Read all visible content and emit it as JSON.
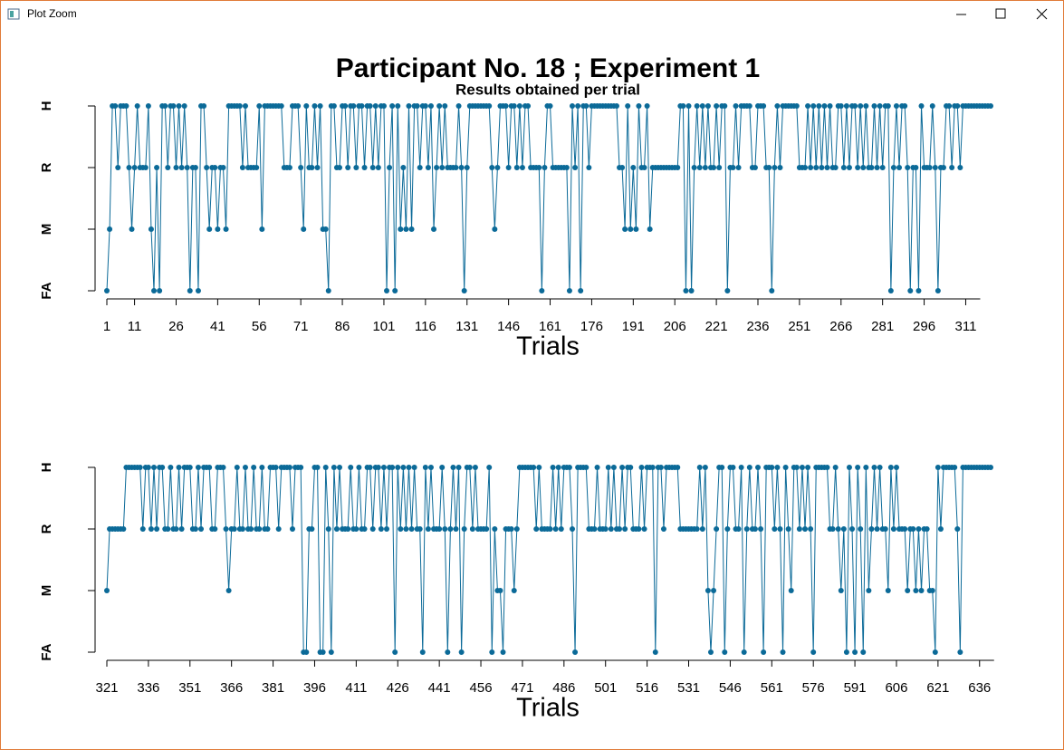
{
  "window_title": "Plot Zoom",
  "chart_data": [
    {
      "type": "line",
      "title": "Participant No. 18 ; Experiment 1",
      "subtitle": "Results obtained per trial",
      "x_label": "Trials",
      "color": "#0b6a98",
      "xlim": [
        1,
        320
      ],
      "ylim": [
        1,
        4
      ],
      "xticks": [
        1,
        11,
        26,
        41,
        56,
        71,
        86,
        101,
        116,
        131,
        146,
        161,
        176,
        191,
        206,
        221,
        236,
        251,
        266,
        281,
        296,
        311
      ],
      "yticks": [
        {
          "value": 1,
          "label": "FA"
        },
        {
          "value": 2,
          "label": "M"
        },
        {
          "value": 3,
          "label": "R"
        },
        {
          "value": 4,
          "label": "H"
        }
      ],
      "x": [
        1,
        2,
        3,
        4,
        5,
        6,
        7,
        8,
        9,
        10,
        11,
        12,
        13,
        14,
        15,
        16,
        17,
        18,
        19,
        20,
        21,
        22,
        23,
        24,
        25,
        26,
        27,
        28,
        29,
        30,
        31,
        32,
        33,
        34,
        35,
        36,
        37,
        38,
        39,
        40,
        41,
        42,
        43,
        44,
        45,
        46,
        47,
        48,
        49,
        50,
        51,
        52,
        53,
        54,
        55,
        56,
        57,
        58,
        59,
        60,
        61,
        62,
        63,
        64,
        65,
        66,
        67,
        68,
        69,
        70,
        71,
        72,
        73,
        74,
        75,
        76,
        77,
        78,
        79,
        80,
        81,
        82,
        83,
        84,
        85,
        86,
        87,
        88,
        89,
        90,
        91,
        92,
        93,
        94,
        95,
        96,
        97,
        98,
        99,
        100,
        101,
        102,
        103,
        104,
        105,
        106,
        107,
        108,
        109,
        110,
        111,
        112,
        113,
        114,
        115,
        116,
        117,
        118,
        119,
        120,
        121,
        122,
        123,
        124,
        125,
        126,
        127,
        128,
        129,
        130,
        131,
        132,
        133,
        134,
        135,
        136,
        137,
        138,
        139,
        140,
        141,
        142,
        143,
        144,
        145,
        146,
        147,
        148,
        149,
        150,
        151,
        152,
        153,
        154,
        155,
        156,
        157,
        158,
        159,
        160,
        161,
        162,
        163,
        164,
        165,
        166,
        167,
        168,
        169,
        170,
        171,
        172,
        173,
        174,
        175,
        176,
        177,
        178,
        179,
        180,
        181,
        182,
        183,
        184,
        185,
        186,
        187,
        188,
        189,
        190,
        191,
        192,
        193,
        194,
        195,
        196,
        197,
        198,
        199,
        200,
        201,
        202,
        203,
        204,
        205,
        206,
        207,
        208,
        209,
        210,
        211,
        212,
        213,
        214,
        215,
        216,
        217,
        218,
        219,
        220,
        221,
        222,
        223,
        224,
        225,
        226,
        227,
        228,
        229,
        230,
        231,
        232,
        233,
        234,
        235,
        236,
        237,
        238,
        239,
        240,
        241,
        242,
        243,
        244,
        245,
        246,
        247,
        248,
        249,
        250,
        251,
        252,
        253,
        254,
        255,
        256,
        257,
        258,
        259,
        260,
        261,
        262,
        263,
        264,
        265,
        266,
        267,
        268,
        269,
        270,
        271,
        272,
        273,
        274,
        275,
        276,
        277,
        278,
        279,
        280,
        281,
        282,
        283,
        284,
        285,
        286,
        287,
        288,
        289,
        290,
        291,
        292,
        293,
        294,
        295,
        296,
        297,
        298,
        299,
        300,
        301,
        302,
        303,
        304,
        305,
        306,
        307,
        308,
        309,
        310,
        311,
        312,
        313,
        314,
        315,
        316,
        317,
        318,
        319,
        320
      ],
      "values": [
        1,
        2,
        4,
        4,
        3,
        4,
        4,
        4,
        3,
        2,
        3,
        4,
        3,
        3,
        3,
        4,
        2,
        1,
        3,
        1,
        4,
        4,
        3,
        4,
        4,
        3,
        4,
        3,
        4,
        3,
        1,
        3,
        3,
        1,
        4,
        4,
        3,
        2,
        3,
        3,
        2,
        3,
        3,
        2,
        4,
        4,
        4,
        4,
        4,
        3,
        4,
        3,
        3,
        3,
        3,
        4,
        2,
        4,
        4,
        4,
        4,
        4,
        4,
        4,
        3,
        3,
        3,
        4,
        4,
        4,
        3,
        2,
        4,
        3,
        3,
        4,
        3,
        4,
        2,
        2,
        1,
        4,
        4,
        3,
        3,
        4,
        4,
        3,
        4,
        4,
        3,
        4,
        4,
        3,
        4,
        4,
        3,
        4,
        3,
        4,
        4,
        1,
        3,
        4,
        1,
        4,
        2,
        3,
        2,
        4,
        2,
        4,
        4,
        3,
        4,
        4,
        3,
        4,
        2,
        3,
        4,
        3,
        4,
        3,
        3,
        3,
        3,
        4,
        3,
        1,
        3,
        4,
        4,
        4,
        4,
        4,
        4,
        4,
        4,
        3,
        2,
        3,
        4,
        4,
        4,
        3,
        4,
        4,
        3,
        4,
        3,
        4,
        4,
        3,
        3,
        3,
        3,
        1,
        3,
        4,
        4,
        3,
        3,
        3,
        3,
        3,
        3,
        1,
        4,
        3,
        4,
        1,
        4,
        4,
        3,
        4,
        4,
        4,
        4,
        4,
        4,
        4,
        4,
        4,
        4,
        3,
        3,
        2,
        4,
        2,
        3,
        2,
        4,
        3,
        3,
        4,
        2,
        3,
        3,
        3,
        3,
        3,
        3,
        3,
        3,
        3,
        3,
        4,
        4,
        1,
        4,
        1,
        3,
        4,
        3,
        4,
        3,
        4,
        3,
        3,
        4,
        3,
        4,
        4,
        1,
        3,
        3,
        4,
        3,
        4,
        4,
        4,
        4,
        3,
        3,
        4,
        4,
        4,
        3,
        3,
        1,
        3,
        4,
        3,
        4,
        4,
        4,
        4,
        4,
        4,
        3,
        3,
        3,
        4,
        3,
        4,
        3,
        4,
        3,
        4,
        3,
        4,
        3,
        3,
        4,
        4,
        3,
        4,
        3,
        4,
        4,
        3,
        4,
        3,
        4,
        3,
        3,
        4,
        3,
        4,
        3,
        4,
        4,
        1,
        3,
        4,
        3,
        4,
        4,
        3,
        1,
        3,
        3,
        1,
        4,
        3,
        3,
        3,
        4,
        3,
        1,
        3,
        3,
        4,
        4,
        3,
        4,
        4,
        3,
        4,
        4,
        4,
        4,
        4,
        4,
        4,
        4,
        4,
        4,
        4
      ]
    },
    {
      "type": "line",
      "x_label": "Trials",
      "color": "#0b6a98",
      "xlim": [
        321,
        640
      ],
      "ylim": [
        1,
        4
      ],
      "xticks": [
        321,
        336,
        351,
        366,
        381,
        396,
        411,
        426,
        441,
        456,
        471,
        486,
        501,
        516,
        531,
        546,
        561,
        576,
        591,
        606,
        621,
        636
      ],
      "yticks": [
        {
          "value": 1,
          "label": "FA"
        },
        {
          "value": 2,
          "label": "M"
        },
        {
          "value": 3,
          "label": "R"
        },
        {
          "value": 4,
          "label": "H"
        }
      ],
      "x": [
        321,
        322,
        323,
        324,
        325,
        326,
        327,
        328,
        329,
        330,
        331,
        332,
        333,
        334,
        335,
        336,
        337,
        338,
        339,
        340,
        341,
        342,
        343,
        344,
        345,
        346,
        347,
        348,
        349,
        350,
        351,
        352,
        353,
        354,
        355,
        356,
        357,
        358,
        359,
        360,
        361,
        362,
        363,
        364,
        365,
        366,
        367,
        368,
        369,
        370,
        371,
        372,
        373,
        374,
        375,
        376,
        377,
        378,
        379,
        380,
        381,
        382,
        383,
        384,
        385,
        386,
        387,
        388,
        389,
        390,
        391,
        392,
        393,
        394,
        395,
        396,
        397,
        398,
        399,
        400,
        401,
        402,
        403,
        404,
        405,
        406,
        407,
        408,
        409,
        410,
        411,
        412,
        413,
        414,
        415,
        416,
        417,
        418,
        419,
        420,
        421,
        422,
        423,
        424,
        425,
        426,
        427,
        428,
        429,
        430,
        431,
        432,
        433,
        434,
        435,
        436,
        437,
        438,
        439,
        440,
        441,
        442,
        443,
        444,
        445,
        446,
        447,
        448,
        449,
        450,
        451,
        452,
        453,
        454,
        455,
        456,
        457,
        458,
        459,
        460,
        461,
        462,
        463,
        464,
        465,
        466,
        467,
        468,
        469,
        470,
        471,
        472,
        473,
        474,
        475,
        476,
        477,
        478,
        479,
        480,
        481,
        482,
        483,
        484,
        485,
        486,
        487,
        488,
        489,
        490,
        491,
        492,
        493,
        494,
        495,
        496,
        497,
        498,
        499,
        500,
        501,
        502,
        503,
        504,
        505,
        506,
        507,
        508,
        509,
        510,
        511,
        512,
        513,
        514,
        515,
        516,
        517,
        518,
        519,
        520,
        521,
        522,
        523,
        524,
        525,
        526,
        527,
        528,
        529,
        530,
        531,
        532,
        533,
        534,
        535,
        536,
        537,
        538,
        539,
        540,
        541,
        542,
        543,
        544,
        545,
        546,
        547,
        548,
        549,
        550,
        551,
        552,
        553,
        554,
        555,
        556,
        557,
        558,
        559,
        560,
        561,
        562,
        563,
        564,
        565,
        566,
        567,
        568,
        569,
        570,
        571,
        572,
        573,
        574,
        575,
        576,
        577,
        578,
        579,
        580,
        581,
        582,
        583,
        584,
        585,
        586,
        587,
        588,
        589,
        590,
        591,
        592,
        593,
        594,
        595,
        596,
        597,
        598,
        599,
        600,
        601,
        602,
        603,
        604,
        605,
        606,
        607,
        608,
        609,
        610,
        611,
        612,
        613,
        614,
        615,
        616,
        617,
        618,
        619,
        620,
        621,
        622,
        623,
        624,
        625,
        626,
        627,
        628,
        629,
        630,
        631,
        632,
        633,
        634,
        635,
        636,
        637,
        638,
        639,
        640
      ],
      "values": [
        2,
        3,
        3,
        3,
        3,
        3,
        3,
        4,
        4,
        4,
        4,
        4,
        4,
        3,
        4,
        4,
        3,
        4,
        3,
        4,
        4,
        3,
        3,
        4,
        3,
        3,
        4,
        3,
        4,
        4,
        4,
        3,
        3,
        4,
        3,
        4,
        4,
        4,
        3,
        3,
        4,
        4,
        4,
        3,
        2,
        3,
        3,
        4,
        3,
        3,
        4,
        3,
        3,
        4,
        3,
        3,
        4,
        3,
        3,
        4,
        4,
        4,
        3,
        4,
        4,
        4,
        4,
        3,
        4,
        4,
        4,
        1,
        1,
        3,
        3,
        4,
        4,
        1,
        1,
        4,
        3,
        1,
        4,
        3,
        4,
        3,
        3,
        3,
        4,
        3,
        3,
        4,
        3,
        3,
        4,
        4,
        3,
        4,
        4,
        3,
        4,
        3,
        4,
        4,
        1,
        4,
        3,
        4,
        3,
        4,
        3,
        4,
        3,
        3,
        1,
        4,
        3,
        4,
        3,
        3,
        3,
        4,
        3,
        1,
        3,
        4,
        3,
        4,
        1,
        3,
        4,
        4,
        3,
        4,
        3,
        3,
        3,
        3,
        4,
        1,
        3,
        2,
        2,
        1,
        3,
        3,
        3,
        2,
        3,
        4,
        4,
        4,
        4,
        4,
        4,
        3,
        4,
        3,
        3,
        3,
        3,
        4,
        3,
        4,
        3,
        4,
        4,
        4,
        3,
        1,
        4,
        4,
        4,
        4,
        3,
        3,
        3,
        4,
        3,
        3,
        3,
        4,
        3,
        4,
        3,
        3,
        4,
        3,
        4,
        4,
        3,
        3,
        3,
        4,
        3,
        4,
        4,
        4,
        1,
        4,
        4,
        3,
        4,
        4,
        4,
        4,
        4,
        3,
        3,
        3,
        3,
        3,
        3,
        3,
        4,
        3,
        4,
        2,
        1,
        2,
        3,
        4,
        4,
        1,
        3,
        4,
        4,
        3,
        3,
        4,
        1,
        3,
        4,
        3,
        3,
        4,
        3,
        1,
        4,
        4,
        4,
        3,
        4,
        3,
        1,
        4,
        3,
        2,
        4,
        4,
        3,
        4,
        3,
        4,
        3,
        1,
        4,
        4,
        4,
        4,
        4,
        3,
        3,
        4,
        3,
        2,
        3,
        1,
        4,
        3,
        1,
        4,
        3,
        1,
        4,
        2,
        3,
        4,
        3,
        4,
        3,
        3,
        2,
        4,
        3,
        4,
        3,
        3,
        3,
        2,
        3,
        3,
        2,
        3,
        2,
        3,
        3,
        2,
        2,
        1,
        4,
        3,
        4,
        4,
        4,
        4,
        4,
        3,
        1,
        4,
        4,
        4,
        4,
        4,
        4,
        4,
        4,
        4,
        4,
        4
      ]
    }
  ]
}
